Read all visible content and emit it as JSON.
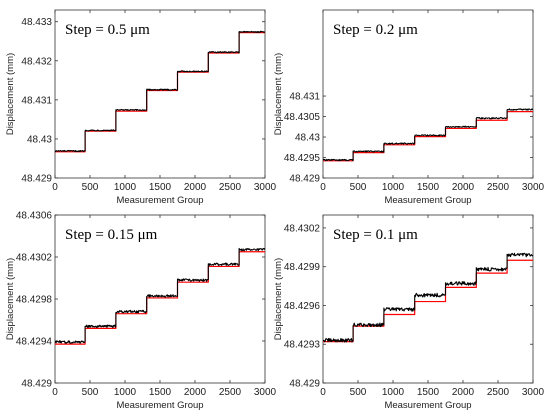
{
  "figure": {
    "panels": [
      {
        "chart_data": {
          "type": "line",
          "annotation": "Step = 0.5 μm",
          "xlabel": "Measurement Group",
          "ylabel": "Displacement (mm)",
          "xlim": [
            0,
            3000
          ],
          "ylim": [
            48.429,
            48.4333
          ],
          "xticks": [
            0,
            500,
            1000,
            1500,
            2000,
            2500,
            3000
          ],
          "xtick_labels": [
            "0",
            "500",
            "1000",
            "1500",
            "2000",
            "2500",
            "3000"
          ],
          "yticks": [
            48.429,
            48.43,
            48.431,
            48.432,
            48.433
          ],
          "ytick_labels": [
            "48.429",
            "48.43",
            "48.431",
            "48.432",
            "48.433"
          ],
          "grid": false,
          "series": [
            {
              "color": "#ff0000",
              "style": "step",
              "x": [
                0,
                430,
                430,
                870,
                870,
                1310,
                1310,
                1750,
                1750,
                2190,
                2190,
                2630,
                2630,
                3000
              ],
              "y": [
                48.42967,
                48.42967,
                48.4302,
                48.4302,
                48.43071,
                48.43071,
                48.43124,
                48.43124,
                48.43171,
                48.43171,
                48.4322,
                48.4322,
                48.43272,
                48.43272
              ]
            },
            {
              "color": "#000000",
              "style": "noisy",
              "x": [
                0,
                430,
                430,
                870,
                870,
                1310,
                1310,
                1750,
                1750,
                2190,
                2190,
                2630,
                2630,
                3000
              ],
              "y": [
                48.42969,
                48.42969,
                48.43022,
                48.43022,
                48.43074,
                48.43074,
                48.43126,
                48.43126,
                48.43173,
                48.43173,
                48.43222,
                48.43222,
                48.43274,
                48.43274
              ],
              "noise": 1.5e-05
            }
          ]
        }
      },
      {
        "chart_data": {
          "type": "line",
          "annotation": "Step = 0.2 μm",
          "xlabel": "Measurement Group",
          "ylabel": "Displacement (mm)",
          "xlim": [
            0,
            3000
          ],
          "ylim": [
            48.429,
            48.4331
          ],
          "xticks": [
            0,
            500,
            1000,
            1500,
            2000,
            2500,
            3000
          ],
          "xtick_labels": [
            "0",
            "500",
            "1000",
            "1500",
            "2000",
            "2500",
            "3000"
          ],
          "yticks": [
            48.429,
            48.4295,
            48.43,
            48.4305,
            48.431
          ],
          "ytick_labels": [
            "48.429",
            "48.4295",
            "48.43",
            "48.4305",
            "48.431"
          ],
          "grid": false,
          "series": [
            {
              "color": "#ff0000",
              "style": "step",
              "x": [
                0,
                430,
                430,
                870,
                870,
                1310,
                1310,
                1750,
                1750,
                2190,
                2190,
                2630,
                2630,
                3000
              ],
              "y": [
                48.42942,
                48.42942,
                48.42962,
                48.42962,
                48.42981,
                48.42981,
                48.43001,
                48.43001,
                48.43021,
                48.43021,
                48.43041,
                48.43041,
                48.43062,
                48.43062
              ]
            },
            {
              "color": "#000000",
              "style": "noisy",
              "x": [
                0,
                430,
                430,
                870,
                870,
                1310,
                1310,
                1750,
                1750,
                2190,
                2190,
                2630,
                2630,
                3000
              ],
              "y": [
                48.42944,
                48.42944,
                48.42965,
                48.42965,
                48.42984,
                48.42984,
                48.43004,
                48.43004,
                48.43025,
                48.43025,
                48.43046,
                48.43046,
                48.43067,
                48.43067
              ],
              "noise": 1.6e-05
            }
          ]
        }
      },
      {
        "chart_data": {
          "type": "line",
          "annotation": "Step = 0.15 μm",
          "xlabel": "Measurement Group",
          "ylabel": "Displacement (mm)",
          "xlim": [
            0,
            3000
          ],
          "ylim": [
            48.429,
            48.4306
          ],
          "xticks": [
            0,
            500,
            1000,
            1500,
            2000,
            2500,
            3000
          ],
          "xtick_labels": [
            "0",
            "500",
            "1000",
            "1500",
            "2000",
            "2500",
            "3000"
          ],
          "yticks": [
            48.429,
            48.4294,
            48.4298,
            48.4302,
            48.4306
          ],
          "ytick_labels": [
            "48.429",
            "48.4294",
            "48.4298",
            "48.4302",
            "48.4306"
          ],
          "grid": false,
          "series": [
            {
              "color": "#ff0000",
              "style": "step",
              "x": [
                0,
                430,
                430,
                870,
                870,
                1310,
                1310,
                1750,
                1750,
                2190,
                2190,
                2630,
                2630,
                3000
              ],
              "y": [
                48.42937,
                48.42937,
                48.42952,
                48.42952,
                48.42966,
                48.42966,
                48.42981,
                48.42981,
                48.42996,
                48.42996,
                48.43011,
                48.43011,
                48.43025,
                48.43025
              ]
            },
            {
              "color": "#000000",
              "style": "noisy",
              "x": [
                0,
                430,
                430,
                870,
                870,
                1310,
                1310,
                1750,
                1750,
                2190,
                2190,
                2630,
                2630,
                3000
              ],
              "y": [
                48.42939,
                48.42939,
                48.42954,
                48.42954,
                48.42968,
                48.42968,
                48.42983,
                48.42983,
                48.42998,
                48.42998,
                48.43013,
                48.43013,
                48.43027,
                48.43027
              ],
              "noise": 1.2e-05
            }
          ]
        }
      },
      {
        "chart_data": {
          "type": "line",
          "annotation": "Step = 0.1 μm",
          "xlabel": "Measurement Group",
          "ylabel": "Displacement (mm)",
          "xlim": [
            0,
            3000
          ],
          "ylim": [
            48.429,
            48.4303
          ],
          "xticks": [
            0,
            500,
            1000,
            1500,
            2000,
            2500,
            3000
          ],
          "xtick_labels": [
            "0",
            "500",
            "1000",
            "1500",
            "2000",
            "2500",
            "3000"
          ],
          "yticks": [
            48.429,
            48.4293,
            48.4296,
            48.4299,
            48.4302
          ],
          "ytick_labels": [
            "48.429",
            "48.4293",
            "48.4296",
            "48.4299",
            "48.4302"
          ],
          "grid": false,
          "series": [
            {
              "color": "#ff0000",
              "style": "step",
              "x": [
                0,
                430,
                430,
                870,
                870,
                1310,
                1310,
                1750,
                1750,
                2190,
                2190,
                2630,
                2630,
                3000
              ],
              "y": [
                48.42932,
                48.42932,
                48.42944,
                48.42944,
                48.42953,
                48.42953,
                48.42963,
                48.42963,
                48.42974,
                48.42974,
                48.42985,
                48.42985,
                48.42995,
                48.42995
              ]
            },
            {
              "color": "#000000",
              "style": "noisy",
              "x": [
                0,
                430,
                430,
                870,
                870,
                1310,
                1310,
                1750,
                1750,
                2190,
                2190,
                2630,
                2630,
                3000
              ],
              "y": [
                48.42933,
                48.42933,
                48.42945,
                48.42945,
                48.42957,
                48.42957,
                48.42968,
                48.42968,
                48.42977,
                48.42977,
                48.42988,
                48.42988,
                48.42999,
                48.42999
              ],
              "noise": 1.4e-05
            }
          ]
        }
      }
    ]
  }
}
